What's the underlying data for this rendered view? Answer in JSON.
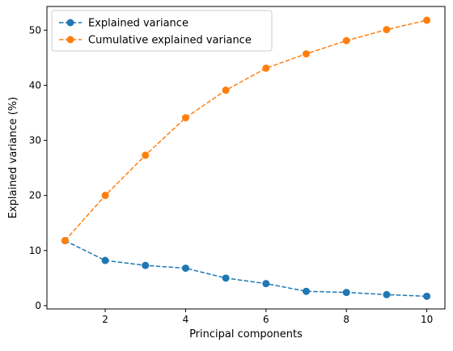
{
  "chart_data": {
    "type": "line",
    "title": "",
    "xlabel": "Principal components",
    "ylabel": "Explained variance (%)",
    "x": [
      1,
      2,
      3,
      4,
      5,
      6,
      7,
      8,
      9,
      10
    ],
    "xlim": [
      0.55,
      10.45
    ],
    "ylim": [
      -0.6,
      54.3
    ],
    "xticks": [
      2,
      4,
      6,
      8,
      10
    ],
    "yticks": [
      0,
      10,
      20,
      30,
      40,
      50
    ],
    "grid": false,
    "legend": "top-left",
    "series": [
      {
        "name": "Explained variance",
        "color": "#1f77b4",
        "linestyle": "dashed",
        "marker": "circle",
        "values": [
          11.8,
          8.2,
          7.3,
          6.8,
          5.0,
          4.0,
          2.6,
          2.4,
          2.0,
          1.7
        ]
      },
      {
        "name": "Cumulative explained variance",
        "color": "#ff7f0e",
        "linestyle": "dashed",
        "marker": "circle",
        "values": [
          11.8,
          20.0,
          27.3,
          34.1,
          39.1,
          43.1,
          45.7,
          48.1,
          50.1,
          51.8
        ]
      }
    ]
  }
}
